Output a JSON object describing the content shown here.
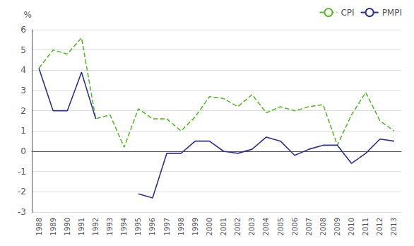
{
  "chart_data": {
    "type": "line",
    "categories": [
      "1988",
      "1989",
      "1990",
      "1991",
      "1992",
      "1993",
      "1994",
      "1995",
      "1996",
      "1997",
      "1998",
      "1999",
      "2000",
      "2001",
      "2002",
      "2003",
      "2004",
      "2005",
      "2006",
      "2007",
      "2008",
      "2009",
      "2010",
      "2011",
      "2012",
      "2013"
    ],
    "series": [
      {
        "name": "CPI",
        "color": "#5cb82a",
        "line_style": "dashed",
        "values": [
          4.1,
          5.0,
          4.8,
          5.6,
          1.6,
          1.8,
          0.2,
          2.1,
          1.6,
          1.6,
          1.0,
          1.7,
          2.7,
          2.6,
          2.2,
          2.8,
          1.9,
          2.2,
          2.0,
          2.2,
          2.3,
          0.3,
          1.8,
          2.9,
          1.5,
          1.0
        ]
      },
      {
        "name": "PMPI",
        "color": "#2e2f8f",
        "line_style": "solid",
        "values": [
          4.1,
          2.0,
          2.0,
          3.9,
          1.6,
          null,
          null,
          -2.1,
          -2.3,
          -0.1,
          -0.1,
          0.5,
          0.5,
          0.0,
          -0.1,
          0.1,
          0.7,
          0.5,
          -0.2,
          0.1,
          0.3,
          0.3,
          -0.6,
          -0.1,
          0.6,
          0.5
        ]
      }
    ],
    "ylabel": "%",
    "ylim": [
      -3,
      6
    ],
    "yticks": [
      -3,
      -2,
      -1,
      0,
      1,
      2,
      3,
      4,
      5,
      6
    ],
    "grid": true,
    "legend": "upper right"
  }
}
